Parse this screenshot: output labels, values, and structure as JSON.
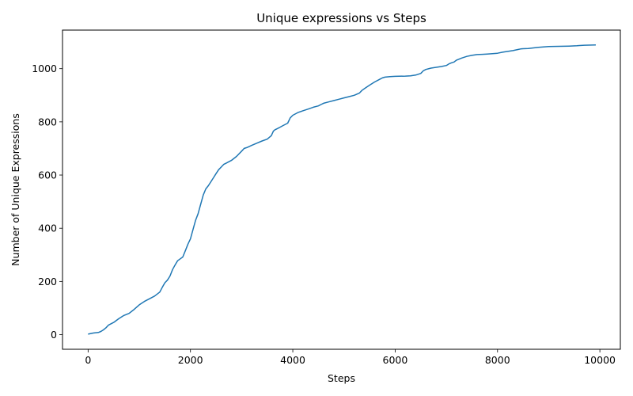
{
  "chart_data": {
    "type": "line",
    "title": "Unique expressions vs Steps",
    "xlabel": "Steps",
    "ylabel": "Number of Unique Expressions",
    "xlim": [
      -500,
      10400
    ],
    "ylim": [
      -55,
      1145
    ],
    "xticks": [
      0,
      2000,
      4000,
      6000,
      8000,
      10000
    ],
    "xtick_labels": [
      "0",
      "2000",
      "4000",
      "6000",
      "8000",
      "10000"
    ],
    "yticks": [
      0,
      200,
      400,
      600,
      800,
      1000
    ],
    "ytick_labels": [
      "0",
      "200",
      "400",
      "600",
      "800",
      "1000"
    ],
    "grid": false,
    "series": [
      {
        "color": "#1f77b4",
        "x": [
          0,
          100,
          200,
          250,
          300,
          350,
          400,
          500,
          600,
          700,
          800,
          900,
          1000,
          1100,
          1200,
          1300,
          1400,
          1450,
          1500,
          1550,
          1600,
          1650,
          1700,
          1750,
          1800,
          1850,
          1900,
          1950,
          2000,
          2050,
          2100,
          2150,
          2200,
          2250,
          2300,
          2350,
          2400,
          2450,
          2500,
          2550,
          2600,
          2650,
          2700,
          2750,
          2800,
          2900,
          3000,
          3050,
          3100,
          3200,
          3300,
          3400,
          3500,
          3580,
          3620,
          3650,
          3700,
          3750,
          3800,
          3900,
          3950,
          4000,
          4100,
          4200,
          4300,
          4400,
          4500,
          4550,
          4600,
          4700,
          4800,
          4900,
          5000,
          5100,
          5200,
          5300,
          5350,
          5400,
          5500,
          5600,
          5700,
          5750,
          5800,
          5900,
          6000,
          6200,
          6300,
          6400,
          6500,
          6550,
          6600,
          6700,
          6800,
          6900,
          7000,
          7050,
          7100,
          7150,
          7200,
          7300,
          7400,
          7500,
          7600,
          7700,
          7800,
          8000,
          8100,
          8200,
          8300,
          8400,
          8450,
          8500,
          8600,
          8700,
          8800,
          8900,
          9000,
          9200,
          9400,
          9550,
          9600,
          9700,
          9920
        ],
        "y": [
          2,
          6,
          8,
          12,
          18,
          26,
          36,
          46,
          60,
          72,
          80,
          95,
          112,
          125,
          135,
          145,
          160,
          178,
          195,
          205,
          220,
          245,
          262,
          278,
          285,
          292,
          315,
          340,
          360,
          395,
          430,
          455,
          490,
          525,
          548,
          560,
          575,
          590,
          605,
          620,
          630,
          640,
          645,
          650,
          655,
          670,
          690,
          700,
          703,
          712,
          720,
          728,
          735,
          748,
          765,
          770,
          775,
          780,
          785,
          795,
          815,
          825,
          835,
          842,
          848,
          855,
          860,
          865,
          870,
          875,
          880,
          885,
          890,
          895,
          900,
          908,
          918,
          925,
          938,
          950,
          960,
          965,
          968,
          970,
          971,
          972,
          973,
          976,
          982,
          992,
          997,
          1002,
          1005,
          1008,
          1012,
          1018,
          1022,
          1025,
          1032,
          1040,
          1046,
          1050,
          1053,
          1054,
          1055,
          1058,
          1062,
          1065,
          1068,
          1072,
          1074,
          1075,
          1076,
          1078,
          1080,
          1082,
          1083,
          1084,
          1085,
          1086,
          1087,
          1088,
          1089
        ]
      }
    ]
  }
}
